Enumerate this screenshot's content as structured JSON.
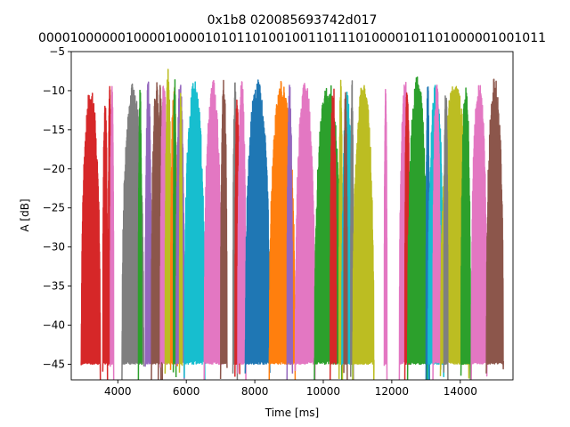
{
  "chart_data": {
    "type": "line",
    "title": "0x1b8 020085693742d017",
    "subtitle": "0000100000010000100001010110100100110111010000101101000001001011",
    "xlabel": "Time [ms]",
    "ylabel": "A [dB]",
    "xlim": [
      2640,
      15540
    ],
    "ylim": [
      -47,
      -5
    ],
    "xticks": [
      4000,
      6000,
      8000,
      10000,
      12000,
      14000
    ],
    "yticks": [
      -45,
      -40,
      -35,
      -30,
      -25,
      -20,
      -15,
      -10,
      -5
    ],
    "grid": false,
    "floor": -45,
    "series": [
      {
        "color": "#d62728",
        "bursts": [
          [
            2930,
            3490,
            -9.5
          ],
          [
            3560,
            3700,
            -10.5
          ],
          [
            3720,
            3810,
            -8.5
          ]
        ]
      },
      {
        "color": "#e377c2",
        "bursts": [
          [
            3780,
            3880,
            -8.5
          ]
        ]
      },
      {
        "color": "#7f7f7f",
        "bursts": [
          [
            4120,
            4760,
            -9.0
          ]
        ]
      },
      {
        "color": "#2ca02c",
        "bursts": [
          [
            4600,
            4700,
            -9.5
          ]
        ]
      },
      {
        "color": "#9467bd",
        "bursts": [
          [
            4800,
            4980,
            -8.5
          ]
        ]
      },
      {
        "color": "#8c564b",
        "bursts": [
          [
            4980,
            5260,
            -8.5
          ],
          [
            5180,
            5300,
            -9.0
          ]
        ]
      },
      {
        "color": "#e377c2",
        "bursts": [
          [
            5240,
            5450,
            -8.5
          ]
        ]
      },
      {
        "color": "#bcbd22",
        "bursts": [
          [
            5380,
            5560,
            -7.0
          ]
        ]
      },
      {
        "color": "#ff7f0e",
        "bursts": [
          [
            5540,
            5740,
            -8.5
          ]
        ]
      },
      {
        "color": "#2ca02c",
        "bursts": [
          [
            5620,
            5700,
            -7.0
          ]
        ]
      },
      {
        "color": "#9467bd",
        "bursts": [
          [
            5700,
            5940,
            -8.5
          ]
        ]
      },
      {
        "color": "#bcbd22",
        "bursts": [
          [
            5800,
            5880,
            -9.5
          ]
        ]
      },
      {
        "color": "#17becf",
        "bursts": [
          [
            5940,
            6540,
            -8.5
          ]
        ]
      },
      {
        "color": "#e377c2",
        "bursts": [
          [
            6520,
            7030,
            -8.5
          ]
        ]
      },
      {
        "color": "#8c564b",
        "bursts": [
          [
            7000,
            7190,
            -8.5
          ]
        ]
      },
      {
        "color": "#7f7f7f",
        "bursts": [
          [
            7360,
            7490,
            -8.5
          ]
        ]
      },
      {
        "color": "#d62728",
        "bursts": [
          [
            7420,
            7560,
            -9.5
          ]
        ]
      },
      {
        "color": "#e377c2",
        "bursts": [
          [
            7500,
            7740,
            -8.5
          ]
        ]
      },
      {
        "color": "#1f77b4",
        "bursts": [
          [
            7720,
            8440,
            -8.5
          ]
        ]
      },
      {
        "color": "#ff7f0e",
        "bursts": [
          [
            8420,
            9180,
            -8.5
          ]
        ]
      },
      {
        "color": "#9467bd",
        "bursts": [
          [
            8940,
            9100,
            -8.5
          ]
        ]
      },
      {
        "color": "#e377c2",
        "bursts": [
          [
            9180,
            9760,
            -8.5
          ]
        ]
      },
      {
        "color": "#2ca02c",
        "bursts": [
          [
            9740,
            10540,
            -8.5
          ]
        ]
      },
      {
        "color": "#d62728",
        "bursts": [
          [
            10200,
            10380,
            -8.5
          ]
        ]
      },
      {
        "color": "#bcbd22",
        "bursts": [
          [
            10460,
            10560,
            -8.5
          ]
        ]
      },
      {
        "color": "#17becf",
        "bursts": [
          [
            10540,
            10860,
            -9.5
          ]
        ]
      },
      {
        "color": "#8c564b",
        "bursts": [
          [
            10600,
            10700,
            -8.0
          ]
        ]
      },
      {
        "color": "#7f7f7f",
        "bursts": [
          [
            10800,
            10880,
            -8.5
          ]
        ]
      },
      {
        "color": "#bcbd22",
        "bursts": [
          [
            10860,
            11480,
            -8.5
          ]
        ]
      },
      {
        "color": "#e377c2",
        "bursts": [
          [
            11780,
            11860,
            -9.5
          ]
        ]
      },
      {
        "color": "#e377c2",
        "bursts": [
          [
            12220,
            12560,
            -8.5
          ]
        ]
      },
      {
        "color": "#d62728",
        "bursts": [
          [
            12380,
            12520,
            -8.5
          ]
        ]
      },
      {
        "color": "#2ca02c",
        "bursts": [
          [
            12460,
            13040,
            -8.0
          ]
        ]
      },
      {
        "color": "#1f77b4",
        "bursts": [
          [
            13000,
            13100,
            -8.5
          ]
        ]
      },
      {
        "color": "#17becf",
        "bursts": [
          [
            13060,
            13520,
            -9.0
          ]
        ]
      },
      {
        "color": "#e377c2",
        "bursts": [
          [
            13200,
            13420,
            -8.5
          ]
        ]
      },
      {
        "color": "#bcbd22",
        "bursts": [
          [
            13420,
            14260,
            -8.5
          ]
        ]
      },
      {
        "color": "#7f7f7f",
        "bursts": [
          [
            13520,
            13640,
            -8.5
          ]
        ]
      },
      {
        "color": "#2ca02c",
        "bursts": [
          [
            14020,
            14300,
            -8.5
          ]
        ]
      },
      {
        "color": "#e377c2",
        "bursts": [
          [
            14320,
            14780,
            -8.5
          ]
        ]
      },
      {
        "color": "#8c564b",
        "bursts": [
          [
            14760,
            15260,
            -8.0
          ]
        ]
      }
    ]
  }
}
